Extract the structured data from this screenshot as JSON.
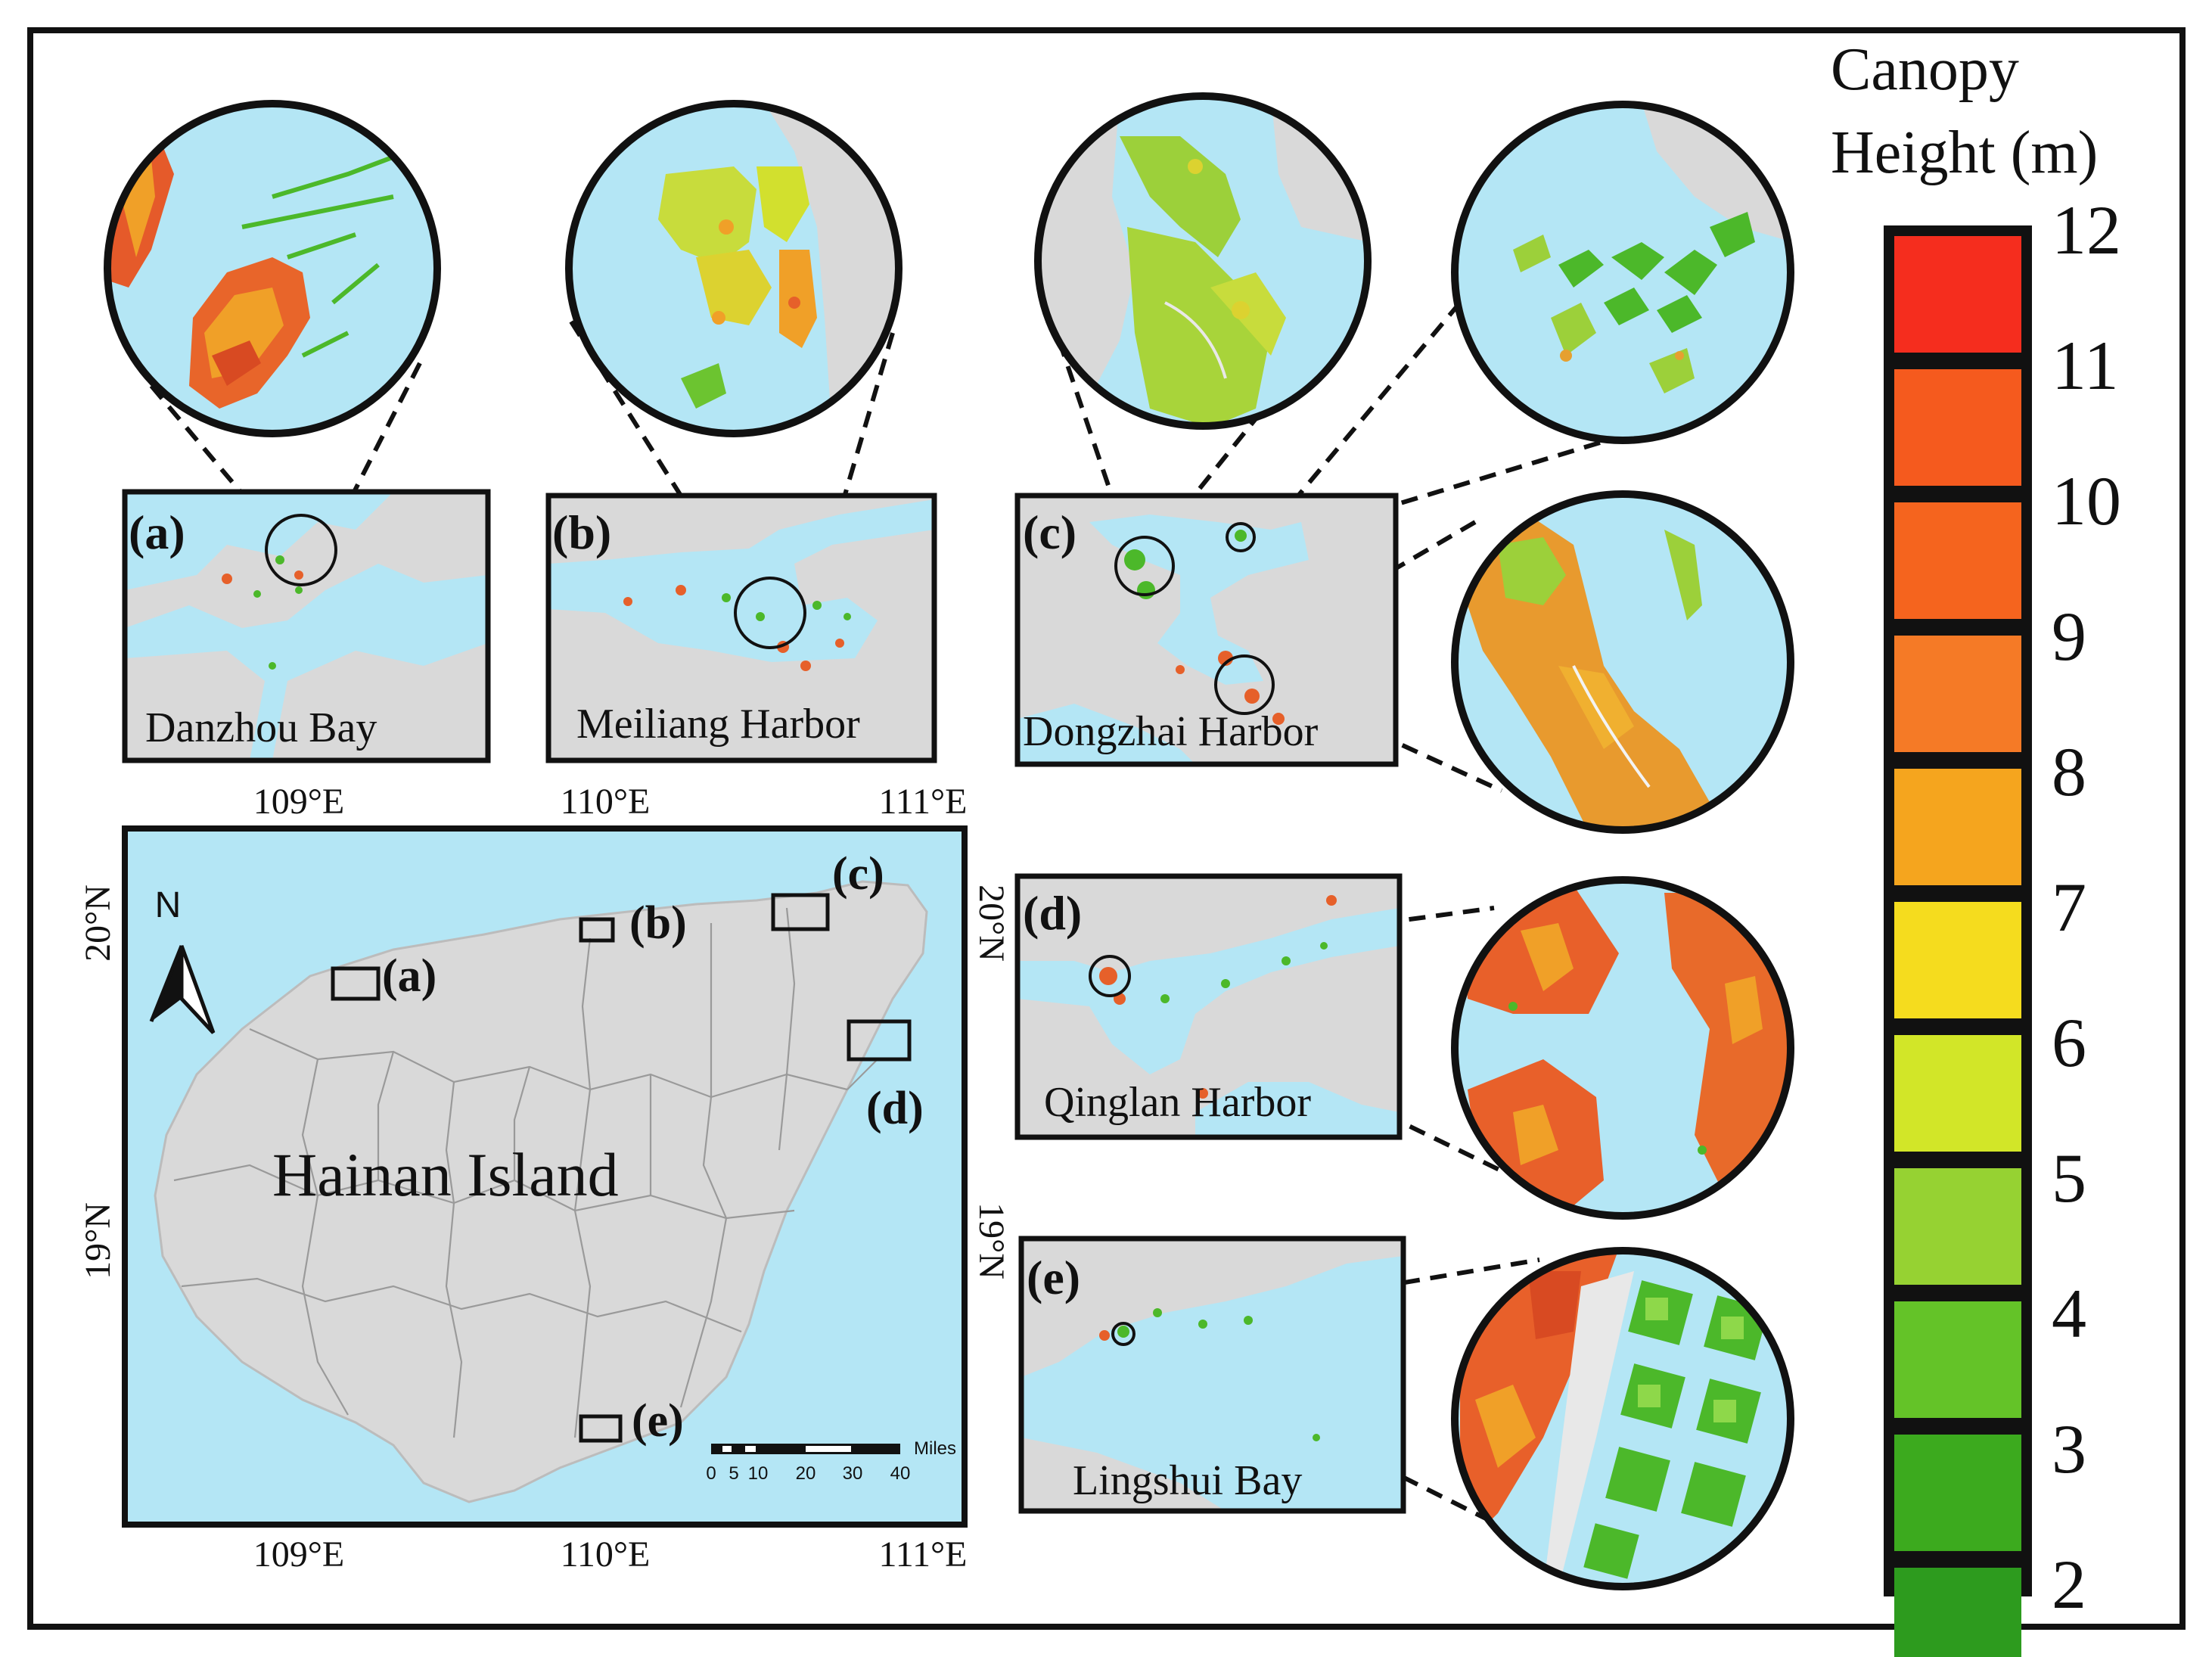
{
  "legend": {
    "title_line1": "Canopy",
    "title_line2": "Height (m)",
    "ticks": [
      "12",
      "11",
      "10",
      "9",
      "8",
      "7",
      "6",
      "5",
      "4",
      "3",
      "2"
    ],
    "colors": [
      "#f52d1e",
      "#f55a1e",
      "#f5641e",
      "#f57a26",
      "#f5a51e",
      "#f5dc1e",
      "#d2e628",
      "#96d232",
      "#64c328",
      "#3caa1e",
      "#2d9b1e"
    ]
  },
  "main_map": {
    "island_label": "Hainan Island",
    "north_label": "N",
    "lon_top": [
      "109°E",
      "110°E",
      "111°E"
    ],
    "lon_bottom": [
      "109°E",
      "110°E",
      "111°E"
    ],
    "lat_left": [
      "20°N",
      "19°N"
    ],
    "lat_right": [
      "20°N",
      "19°N"
    ],
    "site_letters": [
      "(a)",
      "(b)",
      "(c)",
      "(d)",
      "(e)"
    ],
    "scalebar_unit": "Miles",
    "scalebar_ticks": [
      "0",
      "5",
      "10",
      "20",
      "30",
      "40"
    ]
  },
  "panels": [
    {
      "letter": "(a)",
      "name": "Danzhou Bay"
    },
    {
      "letter": "(b)",
      "name": "Meiliang Harbor"
    },
    {
      "letter": "(c)",
      "name": "Dongzhai Harbor"
    },
    {
      "letter": "(d)",
      "name": "Qinglan Harbor"
    },
    {
      "letter": "(e)",
      "name": "Lingshui Bay"
    }
  ],
  "colors": {
    "sea": "#b4e6f5",
    "land": "#d9d9d9",
    "frame": "#111111"
  }
}
